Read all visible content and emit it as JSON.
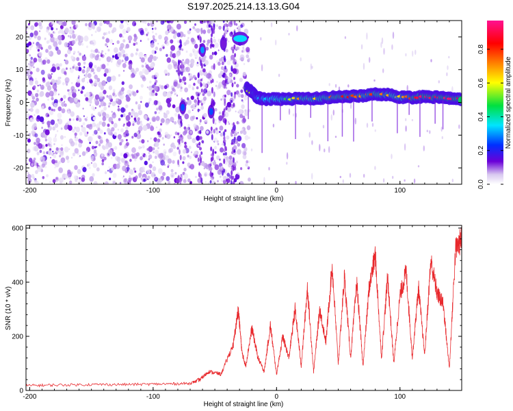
{
  "title": "S197.2025.214.13.13.G04",
  "chart_data": [
    {
      "type": "heatmap",
      "xlabel": "Height of straight line (km)",
      "ylabel": "Frequency (Hz)",
      "xlim": [
        -203,
        150
      ],
      "ylim": [
        -25,
        25
      ],
      "xticks": [
        -200,
        -100,
        0,
        100
      ],
      "yticks": [
        -20,
        -10,
        0,
        10,
        20
      ],
      "colorbar": {
        "label": "Normalized spectral amplitude",
        "range": [
          0,
          0.97
        ],
        "ticks": [
          0.0,
          0.2,
          0.4,
          0.6,
          0.8
        ],
        "tick_labels": [
          "0.0",
          "0.2",
          "0.4",
          "0.6",
          "0.8"
        ],
        "colormap": [
          "#ffffff",
          "#6a00d8",
          "#0030ff",
          "#00e5ff",
          "#00e040",
          "#ffff00",
          "#ff8000",
          "#ff0000",
          "#ff1090"
        ]
      },
      "noise_region_x": [
        -203,
        -22
      ],
      "signal_track": {
        "x": [
          -24,
          -20,
          -16,
          -10,
          0,
          10,
          20,
          30,
          40,
          50,
          60,
          70,
          80,
          90,
          100,
          110,
          120,
          130,
          140,
          150
        ],
        "freq": [
          4.5,
          3.2,
          1.5,
          1.0,
          1.0,
          1.0,
          1.2,
          1.2,
          1.4,
          1.8,
          1.8,
          2.0,
          2.5,
          2.4,
          1.6,
          1.5,
          1.8,
          1.6,
          1.2,
          1.0
        ],
        "peak_amplitude": [
          0.5,
          0.6,
          0.4,
          0.3,
          0.4,
          0.5,
          0.7,
          0.6,
          0.7,
          0.8,
          0.85,
          0.7,
          0.8,
          0.7,
          0.6,
          0.8,
          0.95,
          0.9,
          0.95,
          0.9
        ]
      },
      "features": [
        {
          "x": -35,
          "x2": -24,
          "freq": 19.5,
          "amplitude": 0.35
        },
        {
          "x": -60,
          "freq": 16.0,
          "amplitude": 0.3
        },
        {
          "x": -76,
          "freq": -1.5,
          "amplitude": 0.25
        },
        {
          "x": -53,
          "freq": -2.8,
          "amplitude": 0.25
        },
        {
          "x": -43,
          "freq": 18.0,
          "amplitude": 0.12
        }
      ]
    },
    {
      "type": "line",
      "xlabel": "Height of straight line (km)",
      "ylabel": "SNR (10 * v/v)",
      "xlim": [
        -203,
        150
      ],
      "ylim": [
        0,
        610
      ],
      "xticks": [
        -200,
        -100,
        0,
        100
      ],
      "yticks": [
        0,
        200,
        400,
        600
      ],
      "color": "#e8282c",
      "series": [
        {
          "x": [
            -203,
            -180,
            -150,
            -120,
            -90,
            -70,
            -62,
            -55,
            -45,
            -35,
            -31,
            -28,
            -25,
            -20,
            -15,
            -10,
            -5,
            0,
            5,
            10,
            15,
            20,
            25,
            30,
            35,
            40,
            45,
            50,
            55,
            60,
            65,
            70,
            75,
            80,
            85,
            90,
            95,
            100,
            105,
            110,
            115,
            120,
            125,
            130,
            135,
            140,
            145,
            150
          ],
          "y": [
            18,
            20,
            22,
            22,
            24,
            26,
            40,
            70,
            60,
            170,
            300,
            140,
            90,
            230,
            120,
            70,
            240,
            60,
            200,
            120,
            300,
            90,
            380,
            70,
            300,
            180,
            460,
            100,
            420,
            120,
            400,
            90,
            380,
            500,
            120,
            420,
            100,
            350,
            440,
            120,
            380,
            130,
            480,
            360,
            320,
            80,
            520,
            560
          ]
        }
      ]
    }
  ]
}
